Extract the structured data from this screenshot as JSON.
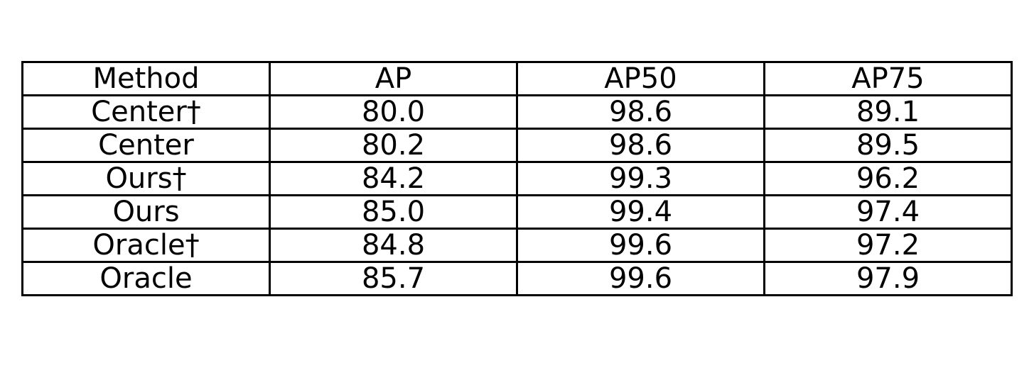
{
  "chart_data": {
    "type": "table",
    "columns": [
      "Method",
      "AP",
      "AP50",
      "AP75"
    ],
    "rows": [
      [
        "Center†",
        "80.0",
        "98.6",
        "89.1"
      ],
      [
        "Center",
        "80.2",
        "98.6",
        "89.5"
      ],
      [
        "Ours†",
        "84.2",
        "99.3",
        "96.2"
      ],
      [
        "Ours",
        "85.0",
        "99.4",
        "97.4"
      ],
      [
        "Oracle†",
        "84.8",
        "99.6",
        "97.2"
      ],
      [
        "Oracle",
        "85.7",
        "99.6",
        "97.9"
      ]
    ]
  }
}
